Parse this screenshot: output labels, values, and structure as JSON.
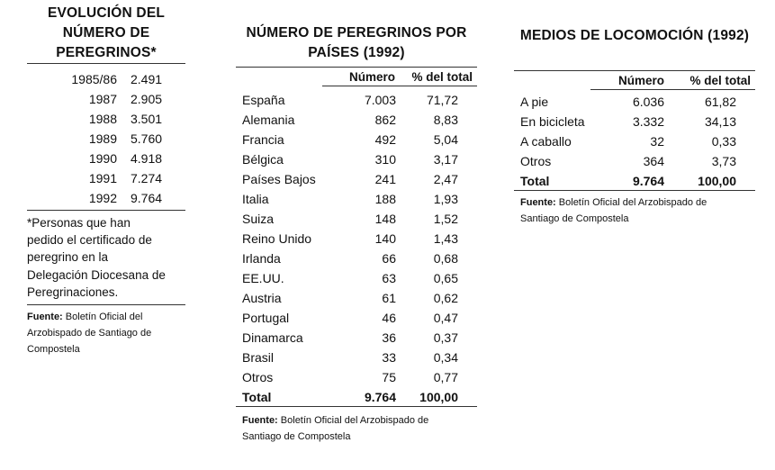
{
  "evolution": {
    "title_lines": [
      "EVOLUCIÓN DEL",
      "NÚMERO DE",
      "PEREGRINOS*"
    ],
    "rows": [
      {
        "year": "1985/86",
        "value": "2.491"
      },
      {
        "year": "1987",
        "value": "2.905"
      },
      {
        "year": "1988",
        "value": "3.501"
      },
      {
        "year": "1989",
        "value": "5.760"
      },
      {
        "year": "1990",
        "value": "4.918"
      },
      {
        "year": "1991",
        "value": "7.274"
      },
      {
        "year": "1992",
        "value": "9.764"
      }
    ],
    "note_lines": [
      "*Personas que han",
      "pedido el certificado de",
      "peregrino en la",
      "Delegación Diocesana de",
      "Peregrinaciones."
    ],
    "source_label": "Fuente:",
    "source_lines": [
      " Boletín Oficial del",
      "Arzobispado de Santiago de",
      "Compostela"
    ]
  },
  "countries": {
    "title_lines": [
      "NÚMERO DE PEREGRINOS POR",
      "PAÍSES (1992)"
    ],
    "col_number": "Número",
    "col_pct": "% del total",
    "rows": [
      {
        "label": "España",
        "number": "7.003",
        "pct": "71,72"
      },
      {
        "label": "Alemania",
        "number": "862",
        "pct": "8,83"
      },
      {
        "label": "Francia",
        "number": "492",
        "pct": "5,04"
      },
      {
        "label": "Bélgica",
        "number": "310",
        "pct": "3,17"
      },
      {
        "label": "Países Bajos",
        "number": "241",
        "pct": "2,47"
      },
      {
        "label": "Italia",
        "number": "188",
        "pct": "1,93"
      },
      {
        "label": "Suiza",
        "number": "148",
        "pct": "1,52"
      },
      {
        "label": "Reino Unido",
        "number": "140",
        "pct": "1,43"
      },
      {
        "label": "Irlanda",
        "number": "66",
        "pct": "0,68"
      },
      {
        "label": "EE.UU.",
        "number": "63",
        "pct": "0,65"
      },
      {
        "label": "Austria",
        "number": "61",
        "pct": "0,62"
      },
      {
        "label": "Portugal",
        "number": "46",
        "pct": "0,47"
      },
      {
        "label": "Dinamarca",
        "number": "36",
        "pct": "0,37"
      },
      {
        "label": "Brasil",
        "number": "33",
        "pct": "0,34"
      },
      {
        "label": "Otros",
        "number": "75",
        "pct": "0,77"
      }
    ],
    "total": {
      "label": "Total",
      "number": "9.764",
      "pct": "100,00"
    },
    "source_label": "Fuente:",
    "source_lines": [
      " Boletín Oficial del Arzobispado de",
      "Santiago de Compostela"
    ]
  },
  "transport": {
    "title": "MEDIOS DE LOCOMOCIÓN (1992)",
    "col_number": "Número",
    "col_pct": "% del total",
    "rows": [
      {
        "label": "A pie",
        "number": "6.036",
        "pct": "61,82"
      },
      {
        "label": "En bicicleta",
        "number": "3.332",
        "pct": "34,13"
      },
      {
        "label": "A caballo",
        "number": "32",
        "pct": "0,33"
      },
      {
        "label": "Otros",
        "number": "364",
        "pct": "3,73"
      }
    ],
    "total": {
      "label": "Total",
      "number": "9.764",
      "pct": "100,00"
    },
    "source_label": "Fuente:",
    "source_lines": [
      " Boletín Oficial del Arzobispado de",
      "Santiago de Compostela"
    ]
  }
}
